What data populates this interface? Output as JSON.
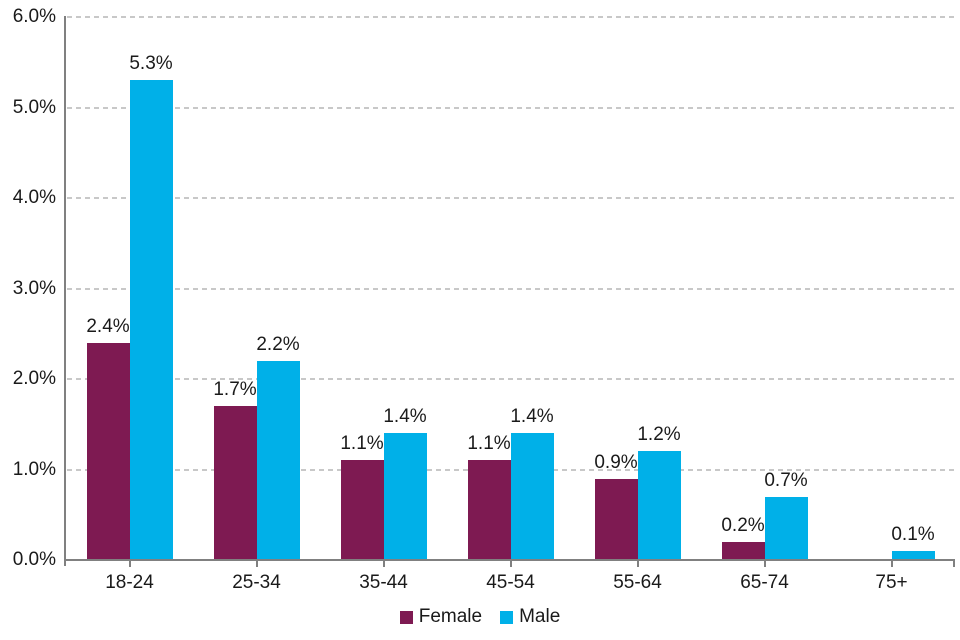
{
  "chart_data": {
    "type": "bar",
    "title": "",
    "xlabel": "",
    "ylabel": "",
    "categories": [
      "18-24",
      "25-34",
      "35-44",
      "45-54",
      "55-64",
      "65-74",
      "75+"
    ],
    "series": [
      {
        "name": "Female",
        "color": "#7E1A52",
        "values": [
          2.4,
          1.7,
          1.1,
          1.1,
          0.9,
          0.2,
          0
        ],
        "data_labels": [
          "2.4%",
          "1.7%",
          "1.1%",
          "1.1%",
          "0.9%",
          "0.2%",
          ""
        ]
      },
      {
        "name": "Male",
        "color": "#00B0E8",
        "values": [
          5.3,
          2.2,
          1.4,
          1.4,
          1.2,
          0.7,
          0.1
        ],
        "data_labels": [
          "5.3%",
          "2.2%",
          "1.4%",
          "1.4%",
          "1.2%",
          "0.7%",
          "0.1%"
        ]
      }
    ],
    "y_axis": {
      "min": 0,
      "max": 6,
      "step": 1,
      "tick_labels": [
        "0.0%",
        "1.0%",
        "2.0%",
        "3.0%",
        "4.0%",
        "5.0%",
        "6.0%"
      ],
      "gridlines": "dashed"
    },
    "x_axis": {
      "tick_labels": [
        "18-24",
        "25-34",
        "35-44",
        "45-54",
        "55-64",
        "65-74",
        "75+"
      ]
    },
    "legend": {
      "position": "bottom",
      "entries": [
        "Female",
        "Male"
      ]
    },
    "colors": {
      "female_series": "#7E1A52",
      "male_series": "#00B0E8",
      "gridline": "#C8C8C8",
      "axis": "#808080",
      "text": "#1A1A1A",
      "background": "#FFFFFF"
    }
  }
}
